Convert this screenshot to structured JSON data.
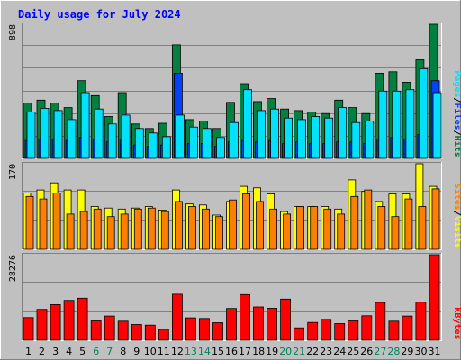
{
  "title": "Daily usage for July 2024",
  "colors": {
    "background": "#C0C0C0",
    "plot_bg": "#C0C0C0",
    "title": "#0000FF",
    "hits": "#008040",
    "files": "#0040FF",
    "pages": "#00E0FF",
    "visits": "#FFFF00",
    "sites": "#FF8000",
    "kbytes": "#FF0000",
    "weekend": "#00805C",
    "weekday": "#000000"
  },
  "chart_data": {
    "type": "bar",
    "categories": [
      "1",
      "2",
      "3",
      "4",
      "5",
      "6",
      "7",
      "8",
      "9",
      "10",
      "11",
      "12",
      "13",
      "14",
      "15",
      "16",
      "17",
      "18",
      "19",
      "20",
      "21",
      "22",
      "23",
      "24",
      "25",
      "26",
      "27",
      "28",
      "29",
      "30",
      "31"
    ],
    "weekend_days": [
      "6",
      "7",
      "13",
      "14",
      "20",
      "21",
      "27",
      "28"
    ],
    "panels": [
      {
        "id": "hits_files_pages",
        "ymax_label": "898",
        "ymax": 898,
        "legend": [
          {
            "text": "Pages",
            "color": "#00E0FF"
          },
          {
            "text": "Files",
            "color": "#0040FF"
          },
          {
            "text": "Hits",
            "color": "#008040"
          }
        ],
        "series": [
          {
            "name": "Hits",
            "color": "#008040",
            "values": [
              370,
              390,
              370,
              340,
              520,
              420,
              280,
              440,
              230,
              200,
              235,
              760,
              260,
              250,
              200,
              375,
              500,
              380,
              400,
              330,
              320,
              310,
              300,
              390,
              340,
              300,
              570,
              580,
              510,
              660,
              898
            ]
          },
          {
            "name": "Files",
            "color": "#0040FF",
            "values": [
              120,
              130,
              130,
              120,
              140,
              130,
              110,
              130,
              90,
              80,
              90,
              570,
              100,
              100,
              80,
              110,
              120,
              110,
              120,
              100,
              110,
              100,
              100,
              110,
              110,
              100,
              130,
              140,
              130,
              160,
              520
            ]
          },
          {
            "name": "Pages",
            "color": "#00E0FF",
            "values": [
              310,
              335,
              320,
              260,
              440,
              330,
              230,
              290,
              200,
              170,
              145,
              290,
              210,
              200,
              140,
              240,
              460,
              320,
              330,
              270,
              260,
              280,
              270,
              340,
              240,
              250,
              450,
              450,
              460,
              600,
              440
            ]
          }
        ]
      },
      {
        "id": "visits_sites",
        "ymax_label": "170",
        "ymax": 170,
        "legend": [
          {
            "text": "Sites",
            "color": "#FF8000"
          },
          {
            "text": "Visits",
            "color": "#FFFF00"
          }
        ],
        "series": [
          {
            "name": "Visits",
            "color": "#FFFF00",
            "values": [
              112,
              118,
              132,
              118,
              118,
              85,
              82,
              80,
              82,
              85,
              78,
              118,
              90,
              88,
              68,
              95,
              125,
              122,
              110,
              75,
              85,
              85,
              85,
              80,
              138,
              115,
              95,
              110,
              110,
              170,
              125
            ]
          },
          {
            "name": "Sites",
            "color": "#FF8000",
            "values": [
              105,
              100,
              112,
              70,
              75,
              80,
              65,
              70,
              80,
              82,
              75,
              95,
              85,
              80,
              65,
              98,
              110,
              95,
              80,
              70,
              85,
              85,
              80,
              70,
              105,
              118,
              85,
              65,
              100,
              85,
              120
            ]
          }
        ]
      },
      {
        "id": "kbytes",
        "ymax_label": "28276",
        "ymax": 28276,
        "legend": [
          {
            "text": "KBytes",
            "color": "#FF0000"
          }
        ],
        "series": [
          {
            "name": "KBytes",
            "color": "#FF0000",
            "values": [
              7500,
              10200,
              11800,
              13200,
              13900,
              6400,
              8000,
              6300,
              5200,
              5000,
              3600,
              15200,
              7400,
              7200,
              5800,
              10500,
              15100,
              11000,
              10600,
              13600,
              4100,
              5900,
              6900,
              5500,
              6400,
              8100,
              12500,
              6300,
              8000,
              12600,
              28276
            ]
          }
        ]
      }
    ]
  }
}
